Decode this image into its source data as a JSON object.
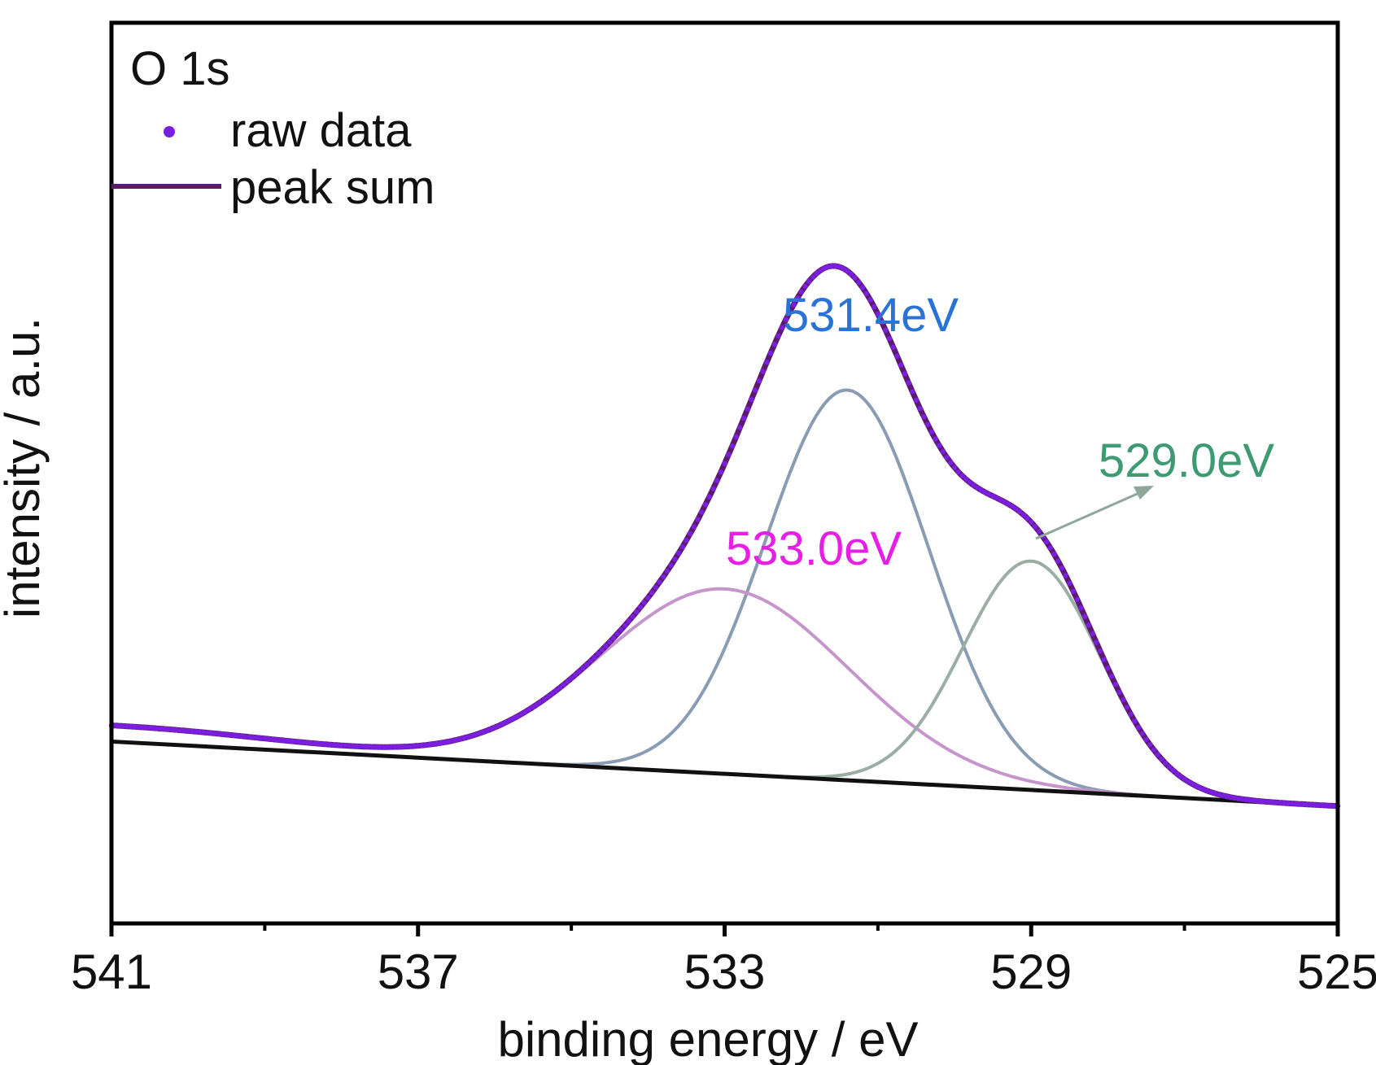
{
  "chart_data": {
    "type": "line",
    "xlabel": "binding energy / eV",
    "ylabel": "intensity / a.u.",
    "xlim": [
      541,
      525
    ],
    "x_reversed": true,
    "ylim": [
      -0.62,
      2.45
    ],
    "x_ticks": [
      541,
      537,
      533,
      529,
      525
    ],
    "x_minor_ticks": [
      539,
      535,
      531,
      527
    ],
    "y_ticks_shown": false,
    "grid": false,
    "legend": {
      "placement": "top-left",
      "title": "O 1s",
      "entries": [
        {
          "label": "raw data",
          "marker": "dot",
          "color": "#7a1fe0"
        },
        {
          "label": "peak sum",
          "marker": "line",
          "color": "#5c1a6e"
        }
      ]
    },
    "baseline": {
      "x": [
        541,
        525
      ],
      "y": [
        0.0,
        -0.22
      ],
      "color": "#111111"
    },
    "components": [
      {
        "label": "531.4eV",
        "center": 531.4,
        "height": 1.33,
        "fwhm": 2.5,
        "color": "#8a9cb4",
        "label_color": "#2a73d6"
      },
      {
        "label": "533.0eV",
        "center": 533.0,
        "height": 0.63,
        "fwhm": 3.8,
        "color": "#c595cc",
        "label_color": "#e61ee6"
      },
      {
        "label": "529.0eV",
        "center": 529.0,
        "height": 0.78,
        "fwhm": 2.1,
        "color": "#9aaea4",
        "label_color": "#3d9a72"
      }
    ],
    "series": [
      {
        "name": "raw data",
        "style": "dots",
        "color": "#7a1fe0"
      },
      {
        "name": "peak sum",
        "style": "line",
        "color": "#5c1a6e"
      }
    ],
    "annotations": [
      {
        "text": "531.4eV",
        "anchor_x": 531.4
      },
      {
        "text": "533.0eV",
        "anchor_x": 533.0
      },
      {
        "text": "529.0eV",
        "anchor_x": 529.0,
        "arrow": true
      }
    ]
  }
}
